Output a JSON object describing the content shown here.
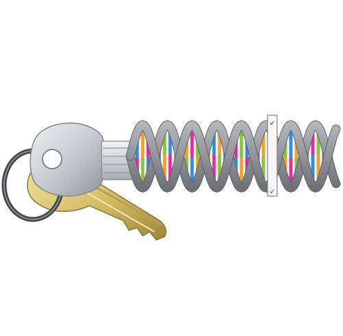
{
  "illustration": {
    "subject": "dna-key-icon",
    "colors": {
      "background": "#ffffff",
      "ring": "#555a60",
      "silver_key": "#c7cbd0",
      "silver_key_dark": "#8e949b",
      "gold_key": "#d6c06b",
      "gold_key_dark": "#9d8735",
      "dna_backbone": "#8c8f94",
      "dna_backbone_dark": "#5e6166",
      "base_pair_colors": [
        "#e62aa0",
        "#8ac43f",
        "#2f8fe0",
        "#f5a02a"
      ],
      "marker_fill": "#f7f7f7",
      "marker_stroke": "#7b7f84"
    },
    "marker_glyphs": {
      "top": "↙",
      "bottom": "↙"
    }
  }
}
